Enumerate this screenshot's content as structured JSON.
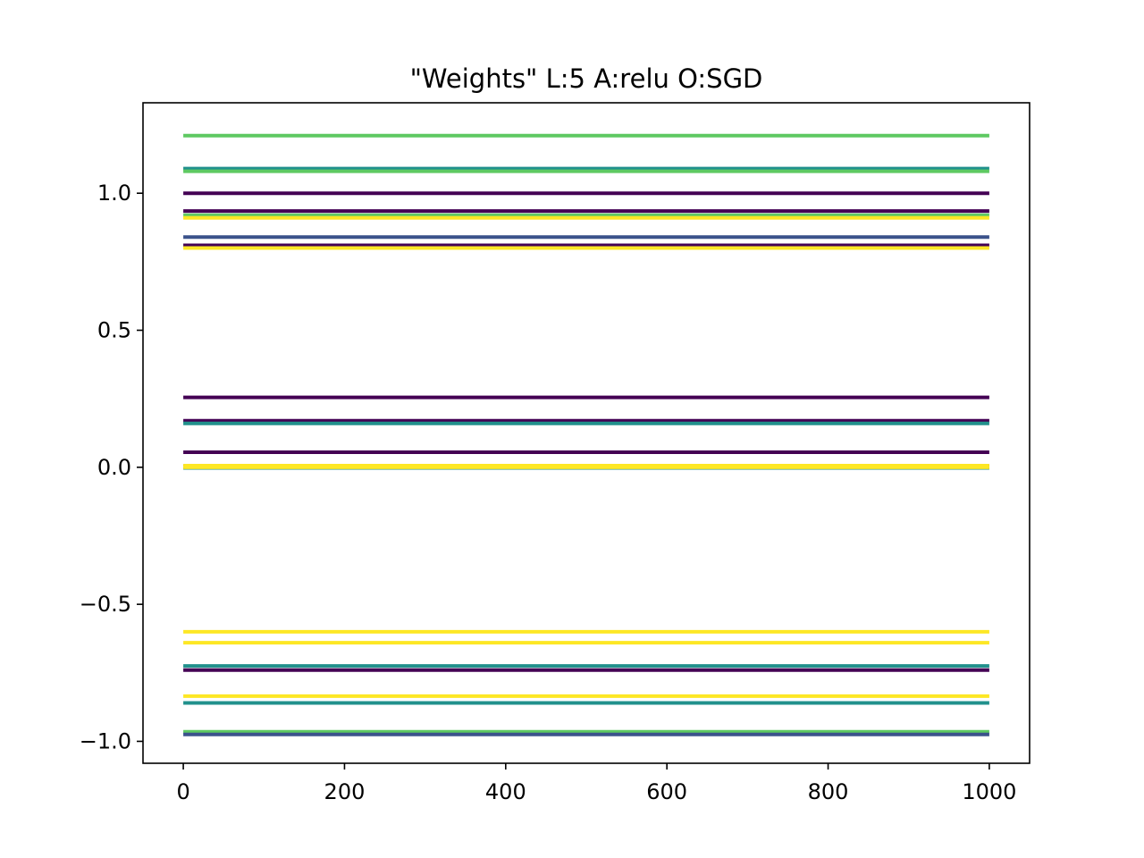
{
  "chart_data": {
    "type": "line",
    "title": "\"Weights\" L:5 A:relu O:SGD",
    "xlabel": "",
    "ylabel": "",
    "xlim": [
      -50,
      1050
    ],
    "ylim": [
      -1.08,
      1.33
    ],
    "x_range": [
      0,
      1000
    ],
    "xticks": [
      0,
      200,
      400,
      600,
      800,
      1000
    ],
    "xtick_labels": [
      "0",
      "200",
      "400",
      "600",
      "800",
      "1000"
    ],
    "yticks": [
      -1.0,
      -0.5,
      0.0,
      0.5,
      1.0
    ],
    "ytick_labels": [
      "−1.0",
      "−0.5",
      "0.0",
      "0.5",
      "1.0"
    ],
    "grid": false,
    "legend": "none",
    "series": [
      {
        "value": 1.21,
        "color": "#5ec962"
      },
      {
        "value": 1.09,
        "color": "#21918c"
      },
      {
        "value": 1.08,
        "color": "#5ec962"
      },
      {
        "value": 1.0,
        "color": "#440154"
      },
      {
        "value": 0.935,
        "color": "#440154"
      },
      {
        "value": 0.92,
        "color": "#5ec962"
      },
      {
        "value": 0.91,
        "color": "#fde725"
      },
      {
        "value": 0.84,
        "color": "#3b528b"
      },
      {
        "value": 0.81,
        "color": "#440154"
      },
      {
        "value": 0.8,
        "color": "#fde725"
      },
      {
        "value": 0.255,
        "color": "#440154"
      },
      {
        "value": 0.17,
        "color": "#440154"
      },
      {
        "value": 0.16,
        "color": "#21918c"
      },
      {
        "value": 0.055,
        "color": "#440154"
      },
      {
        "value": 0.003,
        "color": "#440154"
      },
      {
        "value": 0.0,
        "color": "#3b528b"
      },
      {
        "value": -0.002,
        "color": "#21918c"
      },
      {
        "value": 0.006,
        "color": "#fde725"
      },
      {
        "value": 0.0,
        "color": "#fde725"
      },
      {
        "value": -0.6,
        "color": "#fde725"
      },
      {
        "value": -0.64,
        "color": "#fde725"
      },
      {
        "value": -0.725,
        "color": "#21918c"
      },
      {
        "value": -0.74,
        "color": "#440154"
      },
      {
        "value": -0.835,
        "color": "#fde725"
      },
      {
        "value": -0.86,
        "color": "#21918c"
      },
      {
        "value": -0.965,
        "color": "#5ec962"
      },
      {
        "value": -0.975,
        "color": "#3b528b"
      }
    ]
  }
}
